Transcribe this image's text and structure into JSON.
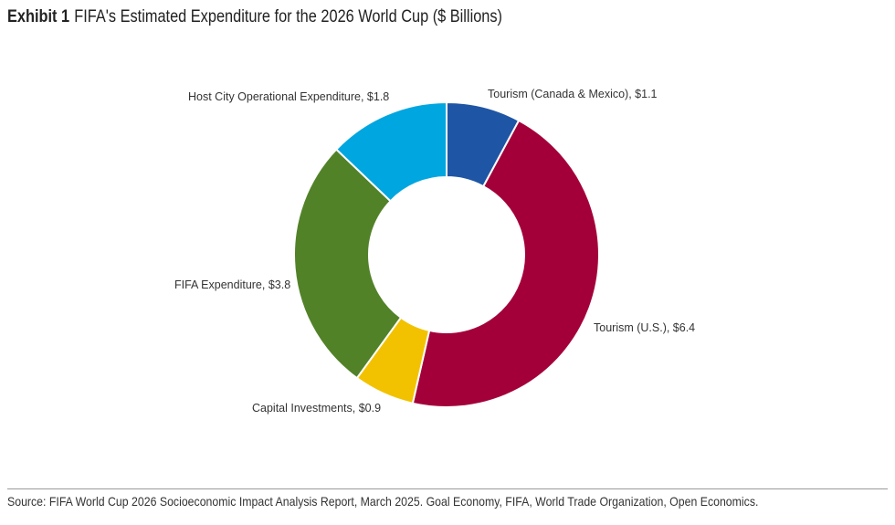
{
  "header": {
    "exhibit_label": "Exhibit 1",
    "title": "FIFA's Estimated Expenditure for the 2026 World Cup ($ Billions)"
  },
  "chart_data": {
    "type": "pie",
    "variant": "donut",
    "start_angle_deg": 0,
    "direction": "clockwise",
    "slices": [
      {
        "label": "Tourism (Canada & Mexico), $1.1",
        "value": 1.1,
        "color": "#1f55a5"
      },
      {
        "label": "Tourism (U.S.), $6.4",
        "value": 6.4,
        "color": "#a3003a"
      },
      {
        "label": "Capital Investments, $0.9",
        "value": 0.9,
        "color": "#f2c200"
      },
      {
        "label": "FIFA Expenditure, $3.8",
        "value": 3.8,
        "color": "#528228"
      },
      {
        "label": "Host City Operational Expenditure, $1.8",
        "value": 1.8,
        "color": "#00a6e0"
      }
    ]
  },
  "footer": {
    "source": "Source: FIFA World Cup 2026 Socioeconomic Impact Analysis Report, March 2025. Goal Economy, FIFA, World Trade Organization, Open Economics."
  }
}
